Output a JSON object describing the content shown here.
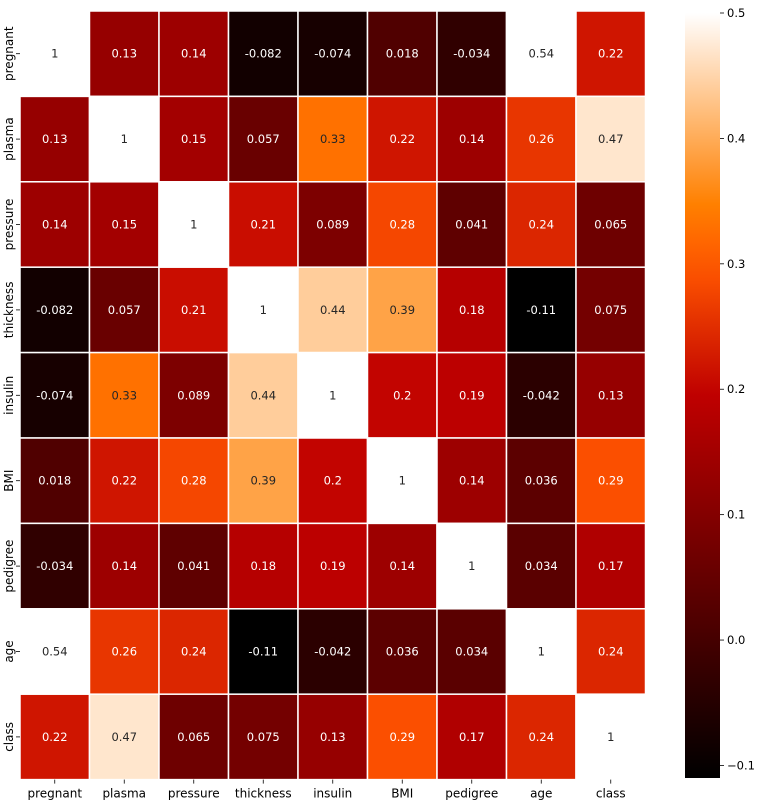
{
  "chart_data": {
    "type": "heatmap",
    "title": "",
    "xlabel": "",
    "ylabel": "",
    "x_categories": [
      "pregnant",
      "plasma",
      "pressure",
      "thickness",
      "insulin",
      "BMI",
      "pedigree",
      "age",
      "class"
    ],
    "y_categories": [
      "pregnant",
      "plasma",
      "pressure",
      "thickness",
      "insulin",
      "BMI",
      "pedigree",
      "age",
      "class"
    ],
    "values": [
      [
        1,
        0.13,
        0.14,
        -0.082,
        -0.074,
        0.018,
        -0.034,
        0.54,
        0.22
      ],
      [
        0.13,
        1,
        0.15,
        0.057,
        0.33,
        0.22,
        0.14,
        0.26,
        0.47
      ],
      [
        0.14,
        0.15,
        1,
        0.21,
        0.089,
        0.28,
        0.041,
        0.24,
        0.065
      ],
      [
        -0.082,
        0.057,
        0.21,
        1,
        0.44,
        0.39,
        0.18,
        -0.11,
        0.075
      ],
      [
        -0.074,
        0.33,
        0.089,
        0.44,
        1,
        0.2,
        0.19,
        -0.042,
        0.13
      ],
      [
        0.018,
        0.22,
        0.28,
        0.39,
        0.2,
        1,
        0.14,
        0.036,
        0.29
      ],
      [
        -0.034,
        0.14,
        0.041,
        0.18,
        0.19,
        0.14,
        1,
        0.034,
        0.17
      ],
      [
        0.54,
        0.26,
        0.24,
        -0.11,
        -0.042,
        0.036,
        0.034,
        1,
        0.24
      ],
      [
        0.22,
        0.47,
        0.065,
        0.075,
        0.13,
        0.29,
        0.17,
        0.24,
        1
      ]
    ],
    "annotations": [
      [
        "1",
        "0.13",
        "0.14",
        "-0.082",
        "-0.074",
        "0.018",
        "-0.034",
        "0.54",
        "0.22"
      ],
      [
        "0.13",
        "1",
        "0.15",
        "0.057",
        "0.33",
        "0.22",
        "0.14",
        "0.26",
        "0.47"
      ],
      [
        "0.14",
        "0.15",
        "1",
        "0.21",
        "0.089",
        "0.28",
        "0.041",
        "0.24",
        "0.065"
      ],
      [
        "-0.082",
        "0.057",
        "0.21",
        "1",
        "0.44",
        "0.39",
        "0.18",
        "-0.11",
        "0.075"
      ],
      [
        "-0.074",
        "0.33",
        "0.089",
        "0.44",
        "1",
        "0.2",
        "0.19",
        "-0.042",
        "0.13"
      ],
      [
        "0.018",
        "0.22",
        "0.28",
        "0.39",
        "0.2",
        "1",
        "0.14",
        "0.036",
        "0.29"
      ],
      [
        "-0.034",
        "0.14",
        "0.041",
        "0.18",
        "0.19",
        "0.14",
        "1",
        "0.034",
        "0.17"
      ],
      [
        "0.54",
        "0.26",
        "0.24",
        "-0.11",
        "-0.042",
        "0.036",
        "0.034",
        "1",
        "0.24"
      ],
      [
        "0.22",
        "0.47",
        "0.065",
        "0.075",
        "0.13",
        "0.29",
        "0.17",
        "0.24",
        "1"
      ]
    ],
    "colormap": "gist_heat",
    "vmin": -0.11,
    "vmax": 0.5,
    "colorbar_ticks": [
      -0.1,
      0.0,
      0.1,
      0.2,
      0.3,
      0.4,
      0.5
    ],
    "colorbar_tick_labels": [
      "−0.1",
      "0.0",
      "0.1",
      "0.2",
      "0.3",
      "0.4",
      "0.5"
    ],
    "grid": true,
    "grid_color": "#ffffff"
  }
}
